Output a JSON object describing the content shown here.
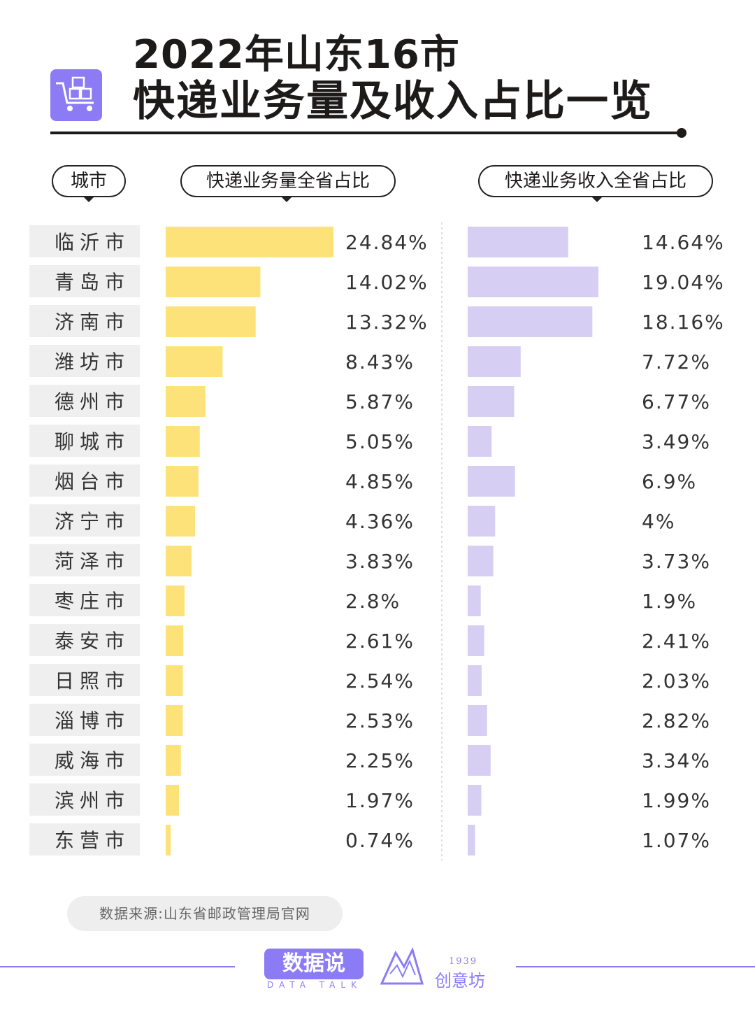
{
  "title": {
    "line1": "2022年山东16市",
    "line2": "快递业务量及收入占比一览"
  },
  "headers": {
    "city": "城市",
    "volume": "快递业务量全省占比",
    "revenue": "快递业务收入全省占比"
  },
  "colors": {
    "volume_bar": "#fde27a",
    "revenue_bar": "#d6cff3",
    "city_bg": "#efefef",
    "accent": "#8b7cf6"
  },
  "chart_data": {
    "type": "bar",
    "categories": [
      "临沂市",
      "青岛市",
      "济南市",
      "潍坊市",
      "德州市",
      "聊城市",
      "烟台市",
      "济宁市",
      "菏泽市",
      "枣庄市",
      "泰安市",
      "日照市",
      "淄博市",
      "威海市",
      "滨州市",
      "东营市"
    ],
    "series": [
      {
        "name": "快递业务量全省占比",
        "values": [
          24.84,
          14.02,
          13.32,
          8.43,
          5.87,
          5.05,
          4.85,
          4.36,
          3.83,
          2.8,
          2.61,
          2.54,
          2.53,
          2.25,
          1.97,
          0.74
        ],
        "labels": [
          "24.84%",
          "14.02%",
          "13.32%",
          "8.43%",
          "5.87%",
          "5.05%",
          "4.85%",
          "4.36%",
          "3.83%",
          "2.8%",
          "2.61%",
          "2.54%",
          "2.53%",
          "2.25%",
          "1.97%",
          "0.74%"
        ]
      },
      {
        "name": "快递业务收入全省占比",
        "values": [
          14.64,
          19.04,
          18.16,
          7.72,
          6.77,
          3.49,
          6.9,
          4,
          3.73,
          1.9,
          2.41,
          2.03,
          2.82,
          3.34,
          1.99,
          1.07
        ],
        "labels": [
          "14.64%",
          "19.04%",
          "18.16%",
          "7.72%",
          "6.77%",
          "3.49%",
          "6.9%",
          "4%",
          "3.73%",
          "1.9%",
          "2.41%",
          "2.03%",
          "2.82%",
          "3.34%",
          "1.99%",
          "1.07%"
        ]
      }
    ]
  },
  "footer": {
    "source": "数据来源:山东省邮政管理局官网",
    "brand": "数据说",
    "brand_sub": "DATA TALK",
    "logo2_year": "1939",
    "logo2_name": "创意坊"
  }
}
